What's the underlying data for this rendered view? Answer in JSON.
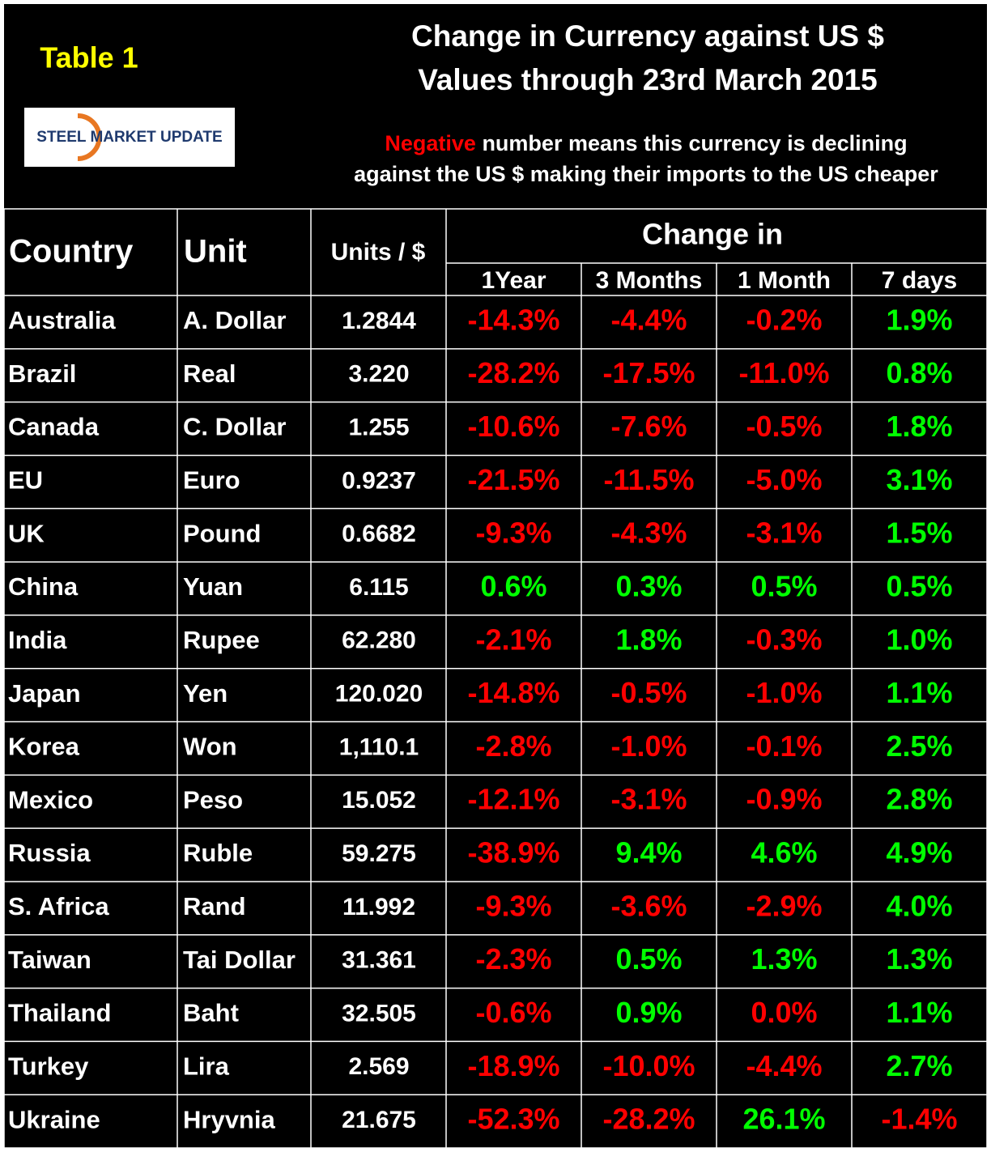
{
  "header": {
    "label": "Table 1",
    "title": [
      "Change in Currency against US $",
      "Values through 23rd March 2015"
    ],
    "logo": "STEEL MARKET UPDATE",
    "note": {
      "highlight": "Negative",
      "line1": " number means this currency is declining",
      "line2": "against the US $ making their imports to the US cheaper"
    }
  },
  "palette": {
    "negative": "#ff0000",
    "positive": "#00ff00",
    "label": "#ffff00"
  },
  "table": {
    "columns": [
      "Country",
      "Unit",
      "Units / $"
    ],
    "group": "Change in",
    "periods": [
      "1Year",
      "3 Months",
      "1 Month",
      "7 days"
    ],
    "rows": [
      {
        "country": "Australia",
        "unit": "A. Dollar",
        "rate": "1.2844",
        "changes": [
          "-14.3%",
          "-4.4%",
          "-0.2%",
          "1.9%"
        ],
        "tones": [
          "negative",
          "negative",
          "negative",
          "positive"
        ]
      },
      {
        "country": "Brazil",
        "unit": "Real",
        "rate": "3.220",
        "changes": [
          "-28.2%",
          "-17.5%",
          "-11.0%",
          "0.8%"
        ],
        "tones": [
          "negative",
          "negative",
          "negative",
          "positive"
        ]
      },
      {
        "country": "Canada",
        "unit": "C. Dollar",
        "rate": "1.255",
        "changes": [
          "-10.6%",
          "-7.6%",
          "-0.5%",
          "1.8%"
        ],
        "tones": [
          "negative",
          "negative",
          "negative",
          "positive"
        ]
      },
      {
        "country": "EU",
        "unit": "Euro",
        "rate": "0.9237",
        "changes": [
          "-21.5%",
          "-11.5%",
          "-5.0%",
          "3.1%"
        ],
        "tones": [
          "negative",
          "negative",
          "negative",
          "positive"
        ]
      },
      {
        "country": "UK",
        "unit": "Pound",
        "rate": "0.6682",
        "changes": [
          "-9.3%",
          "-4.3%",
          "-3.1%",
          "1.5%"
        ],
        "tones": [
          "negative",
          "negative",
          "negative",
          "positive"
        ]
      },
      {
        "country": "China",
        "unit": "Yuan",
        "rate": "6.115",
        "changes": [
          "0.6%",
          "0.3%",
          "0.5%",
          "0.5%"
        ],
        "tones": [
          "positive",
          "positive",
          "positive",
          "positive"
        ]
      },
      {
        "country": "India",
        "unit": "Rupee",
        "rate": "62.280",
        "changes": [
          "-2.1%",
          "1.8%",
          "-0.3%",
          "1.0%"
        ],
        "tones": [
          "negative",
          "positive",
          "negative",
          "positive"
        ]
      },
      {
        "country": "Japan",
        "unit": "Yen",
        "rate": "120.020",
        "changes": [
          "-14.8%",
          "-0.5%",
          "-1.0%",
          "1.1%"
        ],
        "tones": [
          "negative",
          "negative",
          "negative",
          "positive"
        ]
      },
      {
        "country": "Korea",
        "unit": "Won",
        "rate": "1,110.1",
        "changes": [
          "-2.8%",
          "-1.0%",
          "-0.1%",
          "2.5%"
        ],
        "tones": [
          "negative",
          "negative",
          "negative",
          "positive"
        ]
      },
      {
        "country": "Mexico",
        "unit": "Peso",
        "rate": "15.052",
        "changes": [
          "-12.1%",
          "-3.1%",
          "-0.9%",
          "2.8%"
        ],
        "tones": [
          "negative",
          "negative",
          "negative",
          "positive"
        ]
      },
      {
        "country": "Russia",
        "unit": "Ruble",
        "rate": "59.275",
        "changes": [
          "-38.9%",
          "9.4%",
          "4.6%",
          "4.9%"
        ],
        "tones": [
          "negative",
          "positive",
          "positive",
          "positive"
        ]
      },
      {
        "country": "S. Africa",
        "unit": "Rand",
        "rate": "11.992",
        "changes": [
          "-9.3%",
          "-3.6%",
          "-2.9%",
          "4.0%"
        ],
        "tones": [
          "negative",
          "negative",
          "negative",
          "positive"
        ]
      },
      {
        "country": "Taiwan",
        "unit": "Tai Dollar",
        "rate": "31.361",
        "changes": [
          "-2.3%",
          "0.5%",
          "1.3%",
          "1.3%"
        ],
        "tones": [
          "negative",
          "positive",
          "positive",
          "positive"
        ]
      },
      {
        "country": "Thailand",
        "unit": "Baht",
        "rate": "32.505",
        "changes": [
          "-0.6%",
          "0.9%",
          "0.0%",
          "1.1%"
        ],
        "tones": [
          "negative",
          "positive",
          "negative",
          "positive"
        ]
      },
      {
        "country": "Turkey",
        "unit": "Lira",
        "rate": "2.569",
        "changes": [
          "-18.9%",
          "-10.0%",
          "-4.4%",
          "2.7%"
        ],
        "tones": [
          "negative",
          "negative",
          "negative",
          "positive"
        ]
      },
      {
        "country": "Ukraine",
        "unit": "Hryvnia",
        "rate": "21.675",
        "changes": [
          "-52.3%",
          "-28.2%",
          "26.1%",
          "-1.4%"
        ],
        "tones": [
          "negative",
          "negative",
          "positive",
          "negative"
        ]
      }
    ]
  }
}
